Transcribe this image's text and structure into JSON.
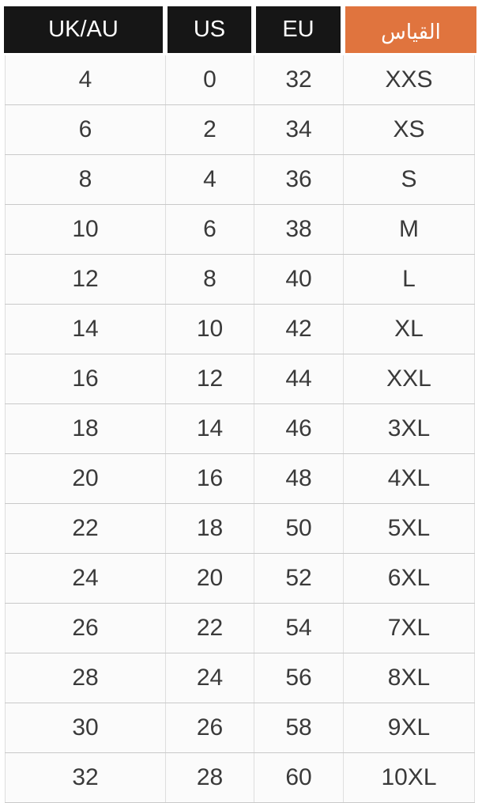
{
  "chart_data": {
    "type": "table",
    "columns": [
      "UK/AU",
      "US",
      "EU",
      "القياس"
    ],
    "rows": [
      [
        "4",
        "0",
        "32",
        "XXS"
      ],
      [
        "6",
        "2",
        "34",
        "XS"
      ],
      [
        "8",
        "4",
        "36",
        "S"
      ],
      [
        "10",
        "6",
        "38",
        "M"
      ],
      [
        "12",
        "8",
        "40",
        "L"
      ],
      [
        "14",
        "10",
        "42",
        "XL"
      ],
      [
        "16",
        "12",
        "44",
        "XXL"
      ],
      [
        "18",
        "14",
        "46",
        "3XL"
      ],
      [
        "20",
        "16",
        "48",
        "4XL"
      ],
      [
        "22",
        "18",
        "50",
        "5XL"
      ],
      [
        "24",
        "20",
        "52",
        "6XL"
      ],
      [
        "26",
        "22",
        "54",
        "7XL"
      ],
      [
        "28",
        "24",
        "56",
        "8XL"
      ],
      [
        "30",
        "26",
        "58",
        "9XL"
      ],
      [
        "32",
        "28",
        "60",
        "10XL"
      ]
    ]
  },
  "header": {
    "uk_au": "UK/AU",
    "us": "US",
    "eu": "EU",
    "size_ar": "القياس"
  },
  "colors": {
    "header_dark_bg": "#161616",
    "header_accent_bg": "#e0743e",
    "header_text": "#ffffff",
    "body_text": "#3a3a3a",
    "grid_line_h": "#c9c9c9",
    "grid_line_v": "#dedede",
    "row_bg": "#fbfbfb",
    "page_bg": "#ffffff"
  }
}
